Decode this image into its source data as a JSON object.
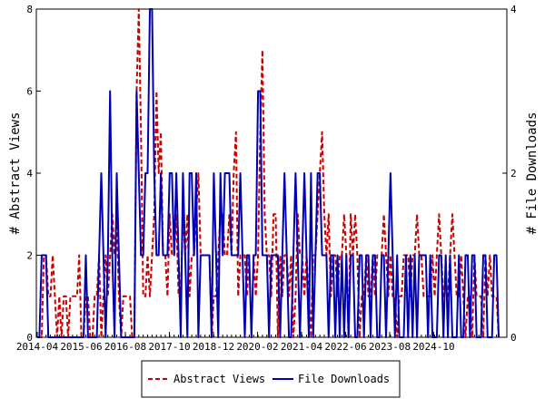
{
  "chart_data": {
    "type": "line",
    "x_tick_labels": [
      "2014-04",
      "2015-06",
      "2016-08",
      "2017-10",
      "2018-12",
      "2020-02",
      "2021-04",
      "2022-06",
      "2023-08",
      "2024-10"
    ],
    "left_axis": {
      "label": "# Abstract Views",
      "ticks": [
        "0",
        "2",
        "4",
        "6",
        "8"
      ],
      "range": [
        0,
        8
      ]
    },
    "right_axis": {
      "label": "# File Downloads",
      "ticks": [
        "0",
        "2",
        "4"
      ],
      "range": [
        0,
        4
      ]
    },
    "grid": false,
    "legend": {
      "placement": "bottom-center",
      "entries": [
        "Abstract Views",
        "File Downloads"
      ]
    },
    "series": [
      {
        "name": "Abstract Views",
        "axis": "left",
        "color": "#cc0000",
        "style": "dashed",
        "values": [
          0,
          0,
          0,
          2,
          2,
          1,
          1,
          2,
          1,
          0,
          1,
          0,
          1,
          1,
          0,
          1,
          1,
          1,
          1,
          2,
          0,
          0,
          1,
          1,
          0,
          0,
          1,
          1,
          2,
          0,
          1,
          2,
          1,
          2,
          3,
          2,
          3,
          1,
          0,
          1,
          1,
          1,
          1,
          0,
          0,
          6,
          8,
          5,
          1,
          1,
          2,
          1,
          2,
          3,
          6,
          4,
          5,
          2,
          2,
          1,
          3,
          2,
          2,
          3,
          1,
          1,
          3,
          2,
          3,
          1,
          2,
          2,
          3,
          4,
          2,
          2,
          2,
          2,
          2,
          0,
          1,
          1,
          2,
          3,
          3,
          2,
          2,
          3,
          2,
          4,
          5,
          1,
          2,
          2,
          2,
          1,
          2,
          2,
          2,
          1,
          2,
          5,
          7,
          3,
          2,
          2,
          1,
          3,
          3,
          0,
          2,
          1,
          2,
          2,
          1,
          2,
          0,
          1,
          3,
          2,
          2,
          1,
          2,
          1,
          0,
          2,
          2,
          3,
          4,
          5,
          3,
          2,
          3,
          1,
          2,
          2,
          1,
          2,
          2,
          3,
          2,
          0,
          3,
          2,
          3,
          2,
          0,
          1,
          1,
          2,
          1,
          1,
          2,
          1,
          2,
          2,
          2,
          3,
          2,
          1,
          2,
          1,
          1,
          0,
          1,
          1,
          2,
          2,
          2,
          1,
          2,
          2,
          3,
          2,
          2,
          1,
          1,
          1,
          1,
          2,
          1,
          2,
          3,
          2,
          1,
          1,
          1,
          2,
          3,
          2,
          1,
          1,
          2,
          1,
          0,
          1,
          1,
          0,
          2,
          1,
          1,
          1,
          0,
          2,
          1,
          2,
          1,
          1,
          1,
          0
        ]
      },
      {
        "name": "File Downloads",
        "axis": "right",
        "color": "#0000b0",
        "style": "solid",
        "values": [
          0,
          0,
          1,
          1,
          1,
          0,
          0,
          0,
          0,
          0,
          0,
          0,
          0,
          0,
          0,
          0,
          0,
          0,
          0,
          0,
          0,
          0,
          1,
          0,
          0,
          0,
          0,
          0,
          1,
          2,
          1,
          0,
          1,
          3,
          1,
          0,
          2,
          1,
          0,
          0,
          0,
          0,
          0,
          0,
          0,
          3,
          2,
          1,
          1,
          2,
          2,
          4,
          4,
          2,
          1,
          1,
          2,
          1,
          1,
          1,
          2,
          2,
          1,
          2,
          1,
          0,
          2,
          1,
          0,
          2,
          2,
          1,
          2,
          0,
          1,
          1,
          1,
          1,
          1,
          0,
          2,
          1,
          0,
          2,
          1,
          2,
          2,
          2,
          1,
          1,
          1,
          1,
          2,
          1,
          0,
          1,
          1,
          0,
          1,
          1,
          3,
          3,
          1,
          1,
          1,
          0,
          1,
          1,
          1,
          1,
          0,
          1,
          2,
          1,
          0,
          0,
          1,
          2,
          1,
          0,
          1,
          2,
          1,
          0,
          2,
          0,
          1,
          2,
          2,
          1,
          1,
          1,
          0,
          1,
          1,
          0,
          1,
          0,
          1,
          0,
          1,
          0,
          1,
          1,
          0,
          0,
          1,
          1,
          0,
          1,
          1,
          0,
          1,
          1,
          0,
          0,
          1,
          1,
          0,
          1,
          2,
          1,
          0,
          1,
          0,
          0,
          0,
          1,
          0,
          1,
          0,
          1,
          0,
          1,
          1,
          1,
          1,
          0,
          1,
          0,
          0,
          0,
          1,
          1,
          0,
          1,
          0,
          1,
          0,
          0,
          0,
          1,
          0,
          0,
          1,
          1,
          0,
          1,
          1,
          0,
          0,
          0,
          1,
          1,
          0,
          0,
          0,
          1,
          1,
          0
        ]
      }
    ]
  }
}
